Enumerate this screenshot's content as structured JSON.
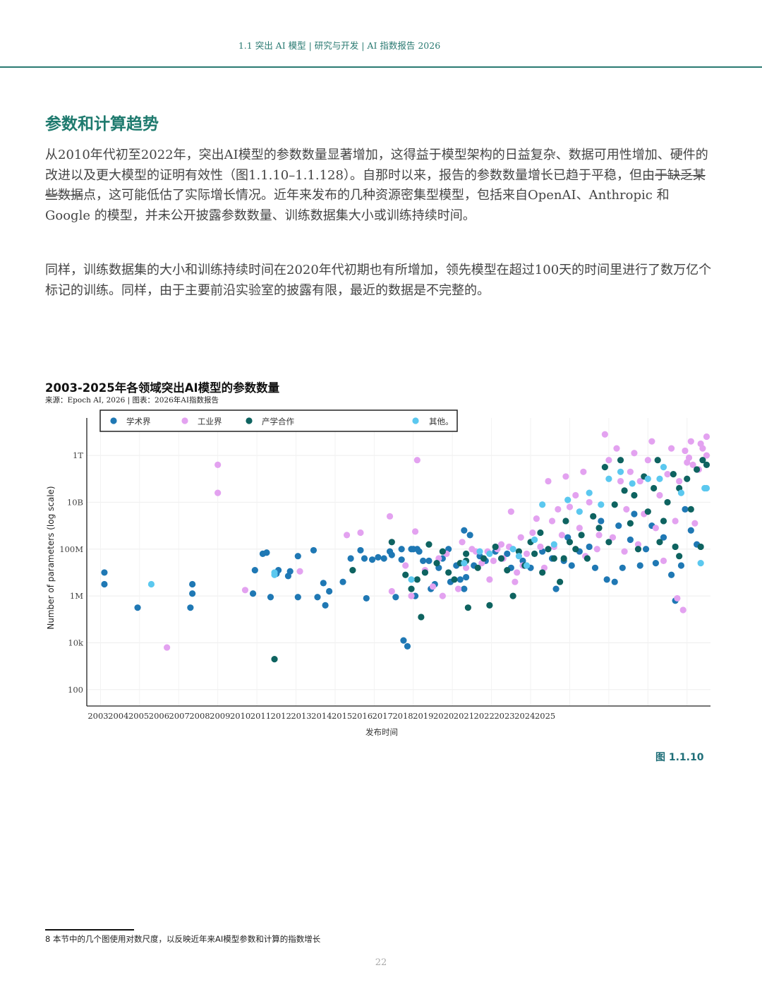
{
  "header": {
    "running_title": "1.1 突出 AI 模型 | 研究与开发 | AI 指数报告 2026"
  },
  "section": {
    "title": "参数和计算趋势"
  },
  "paragraph1": {
    "part1": "从2010年代初至2022年，突出AI模型的参数数量显著增加，这得益于模型架构的日益复杂、数据可用性增加、硬件的改进以及更大模型的证明有效性（图1.1.10–1.1.128）。自那时以来，报告的参数数量增长已趋于平稳，但由",
    "struck": "于缺乏某些数据",
    "part2": "点，这可能低估了实际增长情况。近年来发布的几种资源密集型模型，包括来自OpenAI、Anthropic 和 Google 的模型，并未公开披露参数数量、训练数据集大小或训练持续时间。"
  },
  "paragraph2": "同样，训练数据集的大小和训练持续时间在2020年代初期也有所增加，领先模型在超过100天的时间里进行了数万亿个标记的训练。同样，由于主要前沿实验室的披露有限，最近的数据是不完整的。",
  "figure": {
    "title": "2003-2025年各领域突出AI模型的参数数量",
    "source": "来源：Epoch AI, 2026 | 图表：2026年AI指数报告",
    "label": "图 1.1.10"
  },
  "colors": {
    "academia": "#1f78b4",
    "industry": "#e3a2f0",
    "collab": "#0e6360",
    "other": "#5bc8ef",
    "accent": "#1e7a6e"
  },
  "chart_data": {
    "type": "scatter",
    "xlabel": "发布时间",
    "ylabel": "Number of parameters (log scale)",
    "y_scale": "log",
    "x_ticks": [
      "2003",
      "2004",
      "2005",
      "2006",
      "2007",
      "2008",
      "2009",
      "2010",
      "2011",
      "2012",
      "2013",
      "2014",
      "2015",
      "2016",
      "2017",
      "2018",
      "2019",
      "2020",
      "2021",
      "2022",
      "2023",
      "2024",
      "2025"
    ],
    "y_ticks": [
      {
        "label": "100",
        "value": 100
      },
      {
        "label": "10k",
        "value": 10000
      },
      {
        "label": "1M",
        "value": 1000000
      },
      {
        "label": "100M",
        "value": 100000000
      },
      {
        "label": "10B",
        "value": 10000000000
      },
      {
        "label": "1T",
        "value": 1000000000000
      }
    ],
    "xlim": [
      2002.3,
      2034.2
    ],
    "ylim_log10": [
      1.3,
      13.6
    ],
    "legend_position": "top",
    "series": [
      {
        "name": "学术界",
        "key": "academia",
        "points": [
          [
            2003.2,
            7.0
          ],
          [
            2003.2,
            6.5
          ],
          [
            2004.9,
            5.5
          ],
          [
            2007.6,
            5.5
          ],
          [
            2007.7,
            6.5
          ],
          [
            2007.7,
            6.1
          ],
          [
            2010.8,
            6.1
          ],
          [
            2010.9,
            7.1
          ],
          [
            2011.3,
            7.8
          ],
          [
            2011.5,
            7.85
          ],
          [
            2011.7,
            5.95
          ],
          [
            2012.0,
            6.95
          ],
          [
            2012.1,
            7.1
          ],
          [
            2012.6,
            6.85
          ],
          [
            2012.7,
            7.05
          ],
          [
            2013.1,
            5.95
          ],
          [
            2013.1,
            7.7
          ],
          [
            2013.9,
            7.95
          ],
          [
            2014.1,
            5.95
          ],
          [
            2014.4,
            6.55
          ],
          [
            2014.5,
            5.6
          ],
          [
            2014.7,
            6.2
          ],
          [
            2015.4,
            6.6
          ],
          [
            2015.8,
            7.6
          ],
          [
            2016.3,
            7.95
          ],
          [
            2016.5,
            7.6
          ],
          [
            2016.6,
            5.9
          ],
          [
            2016.9,
            7.55
          ],
          [
            2017.2,
            7.65
          ],
          [
            2017.5,
            7.6
          ],
          [
            2017.8,
            7.9
          ],
          [
            2017.9,
            7.75
          ],
          [
            2018.1,
            5.95
          ],
          [
            2018.4,
            8.0
          ],
          [
            2018.4,
            7.55
          ],
          [
            2018.5,
            4.1
          ],
          [
            2018.7,
            3.85
          ],
          [
            2018.9,
            8.0
          ],
          [
            2019.0,
            8.0
          ],
          [
            2019.1,
            6.0
          ],
          [
            2019.2,
            8.0
          ],
          [
            2019.3,
            7.9
          ],
          [
            2019.5,
            7.5
          ],
          [
            2019.6,
            7.0
          ],
          [
            2019.8,
            7.5
          ],
          [
            2019.9,
            6.3
          ],
          [
            2020.1,
            6.5
          ],
          [
            2020.3,
            7.2
          ],
          [
            2020.5,
            7.6
          ],
          [
            2020.8,
            8.0
          ],
          [
            2020.9,
            6.6
          ],
          [
            2021.2,
            7.3
          ],
          [
            2021.4,
            6.7
          ],
          [
            2021.6,
            8.8
          ],
          [
            2021.6,
            6.3
          ],
          [
            2021.9,
            8.6
          ],
          [
            2021.7,
            6.8
          ],
          [
            2022.1,
            7.3
          ],
          [
            2022.4,
            7.7
          ],
          [
            2022.7,
            7.5
          ],
          [
            2023.2,
            7.9
          ],
          [
            2023.8,
            7.8
          ],
          [
            2024.0,
            7.2
          ],
          [
            2024.6,
            7.5
          ],
          [
            2025.0,
            7.2
          ],
          [
            2025.6,
            7.9
          ],
          [
            2026.1,
            7.6
          ],
          [
            2026.3,
            6.3
          ],
          [
            2026.7,
            7.5
          ],
          [
            2026.9,
            8.5
          ],
          [
            2027.1,
            7.3
          ],
          [
            2027.5,
            7.9
          ],
          [
            2028.0,
            8.1
          ],
          [
            2028.3,
            7.2
          ],
          [
            2028.6,
            9.2
          ],
          [
            2028.9,
            6.7
          ],
          [
            2029.3,
            6.6
          ],
          [
            2029.5,
            9.0
          ],
          [
            2029.7,
            7.2
          ],
          [
            2030.1,
            8.4
          ],
          [
            2030.3,
            9.5
          ],
          [
            2030.6,
            7.3
          ],
          [
            2030.9,
            8.0
          ],
          [
            2031.2,
            9.0
          ],
          [
            2031.4,
            7.4
          ],
          [
            2031.8,
            8.5
          ],
          [
            2032.2,
            6.9
          ],
          [
            2032.4,
            5.8
          ],
          [
            2032.7,
            7.3
          ],
          [
            2033.2,
            8.8
          ],
          [
            2032.9,
            9.7
          ],
          [
            2033.5,
            8.2
          ]
        ]
      },
      {
        "name": "工业界",
        "key": "industry",
        "points": [
          [
            2006.4,
            3.8
          ],
          [
            2009.0,
            11.6
          ],
          [
            2009.0,
            10.4
          ],
          [
            2010.4,
            6.25
          ],
          [
            2013.2,
            7.05
          ],
          [
            2015.6,
            8.6
          ],
          [
            2016.3,
            8.7
          ],
          [
            2017.8,
            9.4
          ],
          [
            2017.9,
            6.2
          ],
          [
            2017.9,
            8.3
          ],
          [
            2018.6,
            7.3
          ],
          [
            2018.9,
            6.0
          ],
          [
            2019.1,
            8.75
          ],
          [
            2019.2,
            11.8
          ],
          [
            2019.6,
            7.1
          ],
          [
            2020.0,
            6.4
          ],
          [
            2020.3,
            7.6
          ],
          [
            2020.5,
            6.0
          ],
          [
            2020.7,
            7.8
          ],
          [
            2021.3,
            6.3
          ],
          [
            2021.5,
            8.3
          ],
          [
            2021.7,
            7.2
          ],
          [
            2022.2,
            7.9
          ],
          [
            2022.5,
            7.4
          ],
          [
            2022.8,
            7.9
          ],
          [
            2023.1,
            7.5
          ],
          [
            2023.3,
            8.0
          ],
          [
            2023.6,
            7.6
          ],
          [
            2023.9,
            8.1
          ],
          [
            2024.0,
            9.6
          ],
          [
            2024.2,
            6.6
          ],
          [
            2024.5,
            8.5
          ],
          [
            2024.6,
            7.3
          ],
          [
            2024.8,
            7.8
          ],
          [
            2025.1,
            8.7
          ],
          [
            2025.3,
            9.3
          ],
          [
            2025.5,
            8.1
          ],
          [
            2025.9,
            10.9
          ],
          [
            2026.1,
            9.2
          ],
          [
            2026.4,
            9.7
          ],
          [
            2026.8,
            11.1
          ],
          [
            2026.6,
            8.6
          ],
          [
            2027.0,
            9.8
          ],
          [
            2027.3,
            10.3
          ],
          [
            2027.5,
            8.9
          ],
          [
            2027.7,
            11.3
          ],
          [
            2028.0,
            10.0
          ],
          [
            2028.2,
            9.4
          ],
          [
            2028.4,
            8.0
          ],
          [
            2028.8,
            12.9
          ],
          [
            2029.0,
            11.8
          ],
          [
            2029.2,
            8.5
          ],
          [
            2029.6,
            10.9
          ],
          [
            2029.4,
            12.3
          ],
          [
            2029.9,
            9.7
          ],
          [
            2030.1,
            11.3
          ],
          [
            2030.3,
            12.1
          ],
          [
            2030.6,
            10.9
          ],
          [
            2030.8,
            9.5
          ],
          [
            2031.0,
            11.8
          ],
          [
            2031.2,
            12.6
          ],
          [
            2031.4,
            8.9
          ],
          [
            2031.6,
            10.3
          ],
          [
            2031.8,
            7.5
          ],
          [
            2032.0,
            11.2
          ],
          [
            2032.2,
            12.3
          ],
          [
            2032.4,
            9.2
          ],
          [
            2032.6,
            10.9
          ],
          [
            2032.8,
            5.4
          ],
          [
            2033.0,
            11.7
          ],
          [
            2033.2,
            12.6
          ],
          [
            2033.4,
            9.1
          ],
          [
            2033.6,
            11.4
          ],
          [
            2033.8,
            12.3
          ],
          [
            2034.0,
            12.0
          ],
          [
            2034.0,
            12.8
          ],
          [
            2032.5,
            5.9
          ],
          [
            2033.1,
            11.9
          ],
          [
            2033.7,
            12.5
          ],
          [
            2033.3,
            11.6
          ],
          [
            2032.9,
            12.2
          ],
          [
            2030.5,
            8.2
          ],
          [
            2029.8,
            7.9
          ],
          [
            2028.5,
            8.6
          ],
          [
            2027.8,
            7.7
          ],
          [
            2026.2,
            8.1
          ],
          [
            2025.7,
            7.2
          ],
          [
            2024.3,
            7.0
          ],
          [
            2023.5,
            8.2
          ],
          [
            2022.9,
            6.7
          ],
          [
            2022.0,
            8.0
          ]
        ]
      },
      {
        "name": "产学合作",
        "key": "collab",
        "points": [
          [
            2011.9,
            3.3
          ],
          [
            2015.9,
            7.1
          ],
          [
            2017.9,
            8.3
          ],
          [
            2018.6,
            6.9
          ],
          [
            2018.9,
            6.3
          ],
          [
            2019.2,
            6.7
          ],
          [
            2019.4,
            5.1
          ],
          [
            2019.6,
            7.0
          ],
          [
            2019.8,
            8.2
          ],
          [
            2020.2,
            7.4
          ],
          [
            2020.5,
            7.9
          ],
          [
            2020.8,
            7.0
          ],
          [
            2021.1,
            6.7
          ],
          [
            2021.4,
            7.4
          ],
          [
            2021.7,
            7.8
          ],
          [
            2021.7,
            7.5
          ],
          [
            2021.8,
            5.5
          ],
          [
            2022.3,
            7.2
          ],
          [
            2022.6,
            7.6
          ],
          [
            2022.9,
            5.6
          ],
          [
            2023.2,
            8.1
          ],
          [
            2023.5,
            7.6
          ],
          [
            2023.8,
            7.1
          ],
          [
            2024.1,
            6.0
          ],
          [
            2024.4,
            7.9
          ],
          [
            2024.7,
            7.3
          ],
          [
            2025.0,
            8.3
          ],
          [
            2025.2,
            7.8
          ],
          [
            2025.5,
            8.7
          ],
          [
            2025.6,
            7.0
          ],
          [
            2025.9,
            8.0
          ],
          [
            2026.2,
            7.6
          ],
          [
            2026.5,
            6.6
          ],
          [
            2026.8,
            9.2
          ],
          [
            2026.7,
            7.6
          ],
          [
            2027.0,
            8.3
          ],
          [
            2027.3,
            8.0
          ],
          [
            2027.6,
            8.6
          ],
          [
            2027.9,
            7.6
          ],
          [
            2028.2,
            9.4
          ],
          [
            2028.5,
            8.9
          ],
          [
            2028.8,
            11.5
          ],
          [
            2029.0,
            8.3
          ],
          [
            2029.3,
            9.9
          ],
          [
            2029.6,
            11.8
          ],
          [
            2029.8,
            10.5
          ],
          [
            2030.1,
            9.1
          ],
          [
            2030.3,
            10.3
          ],
          [
            2030.5,
            8.0
          ],
          [
            2030.8,
            11.1
          ],
          [
            2031.0,
            9.6
          ],
          [
            2031.3,
            10.6
          ],
          [
            2031.5,
            11.8
          ],
          [
            2031.8,
            9.2
          ],
          [
            2032.0,
            10.0
          ],
          [
            2032.3,
            11.2
          ],
          [
            2032.4,
            8.1
          ],
          [
            2032.6,
            10.6
          ],
          [
            2033.0,
            11.0
          ],
          [
            2033.2,
            9.7
          ],
          [
            2033.5,
            11.4
          ],
          [
            2033.7,
            8.1
          ],
          [
            2033.8,
            11.8
          ],
          [
            2034.0,
            11.6
          ],
          [
            2032.6,
            7.7
          ],
          [
            2031.6,
            8.3
          ]
        ]
      },
      {
        "name": "其他。",
        "key": "other",
        "points": [
          [
            2005.6,
            6.5
          ],
          [
            2011.9,
            7.0
          ],
          [
            2011.9,
            6.9
          ],
          [
            2018.9,
            6.7
          ],
          [
            2021.6,
            7.4
          ],
          [
            2022.4,
            7.9
          ],
          [
            2022.9,
            7.8
          ],
          [
            2024.1,
            8.0
          ],
          [
            2024.4,
            7.7
          ],
          [
            2024.8,
            7.3
          ],
          [
            2025.2,
            8.4
          ],
          [
            2025.6,
            9.9
          ],
          [
            2026.2,
            8.2
          ],
          [
            2026.9,
            10.1
          ],
          [
            2027.5,
            9.6
          ],
          [
            2028.0,
            10.4
          ],
          [
            2028.6,
            9.9
          ],
          [
            2029.0,
            11.0
          ],
          [
            2029.6,
            11.3
          ],
          [
            2030.2,
            10.8
          ],
          [
            2031.0,
            11.0
          ],
          [
            2031.6,
            11.0
          ],
          [
            2031.8,
            11.5
          ],
          [
            2032.7,
            10.4
          ],
          [
            2033.7,
            7.4
          ],
          [
            2033.9,
            10.6
          ],
          [
            2034.0,
            10.6
          ]
        ]
      }
    ]
  },
  "footnote": "8 本节中的几个图使用对数尺度，以反映近年来AI模型参数和计算的指数增长",
  "page": {
    "number": "22"
  }
}
